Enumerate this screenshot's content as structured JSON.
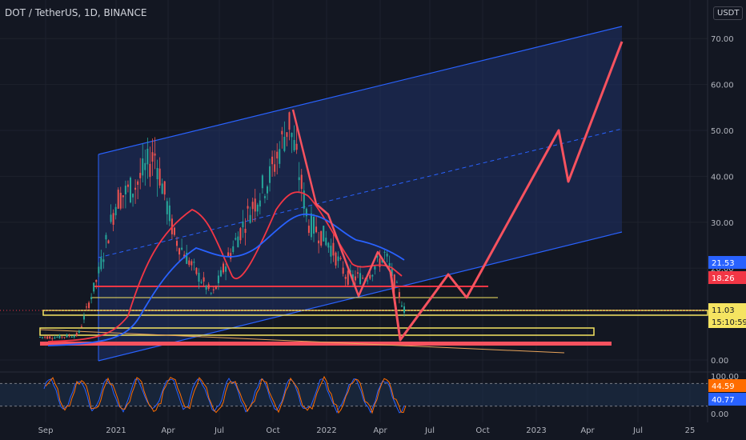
{
  "header": {
    "symbol_title": "DOT / TetherUS, 1D, BINANCE",
    "currency": "USDT"
  },
  "colors": {
    "background": "#131722",
    "grid": "#1e222d",
    "channel_line": "#2962ff",
    "channel_fill": "#1f3168",
    "projection": "#f7525f",
    "candle_up": "#26a69a",
    "candle_down": "#ef5350",
    "ma_short": "#f23645",
    "ma_long": "#2962ff",
    "zone_yellow": "#f5e461",
    "rsi_line": "#7e57c2",
    "rsi_line_2": "#ff6d00"
  },
  "chart_data": [
    {
      "type": "candlestick",
      "title": "DOT / TetherUS, 1D, BINANCE",
      "x_ticks": [
        "Sep",
        "2021",
        "Apr",
        "Jul",
        "Oct",
        "2022",
        "Apr",
        "Jul",
        "Oct",
        "2023",
        "Apr",
        "Jul",
        "25"
      ],
      "y_ticks": [
        0.0,
        10.0,
        20.0,
        30.0,
        40.0,
        50.0,
        60.0,
        70.0
      ],
      "y_tick_labels": [
        "0.00",
        "10.00",
        "20.00",
        "30.00",
        "40.00",
        "50.00",
        "60.00",
        "70.00"
      ],
      "ylim": [
        -2,
        79
      ],
      "grid": true,
      "approx_close": [
        {
          "x": "2020-09",
          "y": 5
        },
        {
          "x": "2020-11",
          "y": 5
        },
        {
          "x": "2020-12",
          "y": 5.5
        },
        {
          "x": "2021-01",
          "y": 18
        },
        {
          "x": "2021-02",
          "y": 35
        },
        {
          "x": "2021-03",
          "y": 38
        },
        {
          "x": "2021-04",
          "y": 45
        },
        {
          "x": "2021-05",
          "y": 27
        },
        {
          "x": "2021-06",
          "y": 20
        },
        {
          "x": "2021-07",
          "y": 14
        },
        {
          "x": "2021-08",
          "y": 24
        },
        {
          "x": "2021-09",
          "y": 33
        },
        {
          "x": "2021-10",
          "y": 40
        },
        {
          "x": "2021-11",
          "y": 52
        },
        {
          "x": "2021-12",
          "y": 30
        },
        {
          "x": "2022-01",
          "y": 26
        },
        {
          "x": "2022-02",
          "y": 18
        },
        {
          "x": "2022-03",
          "y": 18
        },
        {
          "x": "2022-04",
          "y": 23
        },
        {
          "x": "2022-05",
          "y": 11
        }
      ],
      "price_tags": [
        {
          "label": "21.53",
          "value": 21.53,
          "color": "#2962ff"
        },
        {
          "label": "18.26",
          "value": 18.26,
          "color": "#f23645"
        },
        {
          "label": "11.03",
          "value": 11.03,
          "color": "#f5e461"
        },
        {
          "label": "15:10:59",
          "value": 9.2,
          "color": "#f5e461"
        }
      ],
      "projection_path": [
        {
          "x": "2022-05",
          "y": 4.5
        },
        {
          "x": "2022-07",
          "y": 18
        },
        {
          "x": "2022-08",
          "y": 14
        },
        {
          "x": "2022-10",
          "y": 22
        },
        {
          "x": "2023-02",
          "y": 50
        },
        {
          "x": "2023-03",
          "y": 39.5
        },
        {
          "x": "2023-05",
          "y": 70
        }
      ]
    },
    {
      "type": "line",
      "title": "",
      "y_ticks": [
        0.0,
        100.0
      ],
      "y_tick_labels": [
        "0.00",
        "100.00"
      ],
      "ylim": [
        0,
        100
      ],
      "levels": [
        20,
        80
      ],
      "price_tags": [
        {
          "label": "44.59",
          "value": 44.59,
          "color": "#ff6d00"
        },
        {
          "label": "40.77",
          "value": 40.77,
          "color": "#2962ff"
        }
      ]
    }
  ]
}
